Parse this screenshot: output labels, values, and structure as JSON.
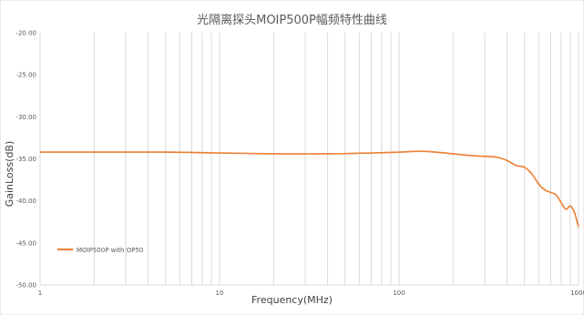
{
  "chart_data": {
    "type": "line",
    "title": "光隔离探头MOIP500P幅频特性曲线",
    "xlabel": "Frequency(MHz)",
    "ylabel": "GainLoss(dB)",
    "x_scale": "log",
    "xlim": [
      1,
      1000
    ],
    "ylim": [
      -50,
      -20
    ],
    "x_ticks": [
      "1",
      "10",
      "100",
      "1000"
    ],
    "y_ticks": [
      "-20.00",
      "-25.00",
      "-30.00",
      "-35.00",
      "-40.00",
      "-45.00",
      "-50.00"
    ],
    "grid": "vertical-log",
    "legend_position": "bottom-left",
    "colors": {
      "series": "#ED7D31",
      "grid": "#D9D9D9",
      "text": "#595959"
    },
    "series": [
      {
        "name": "MOIP500P with OP50",
        "x": [
          1,
          2,
          5,
          10,
          20,
          40,
          70,
          100,
          130,
          160,
          200,
          250,
          300,
          350,
          400,
          450,
          500,
          550,
          600,
          650,
          700,
          750,
          800,
          850,
          900,
          950,
          1000
        ],
        "y": [
          -34.2,
          -34.2,
          -34.2,
          -34.3,
          -34.4,
          -34.4,
          -34.3,
          -34.2,
          -34.1,
          -34.2,
          -34.4,
          -34.6,
          -34.7,
          -34.8,
          -35.2,
          -35.8,
          -36.0,
          -36.8,
          -38.0,
          -38.7,
          -39.0,
          -39.3,
          -40.2,
          -41.0,
          -40.6,
          -41.4,
          -43.1
        ]
      }
    ]
  }
}
